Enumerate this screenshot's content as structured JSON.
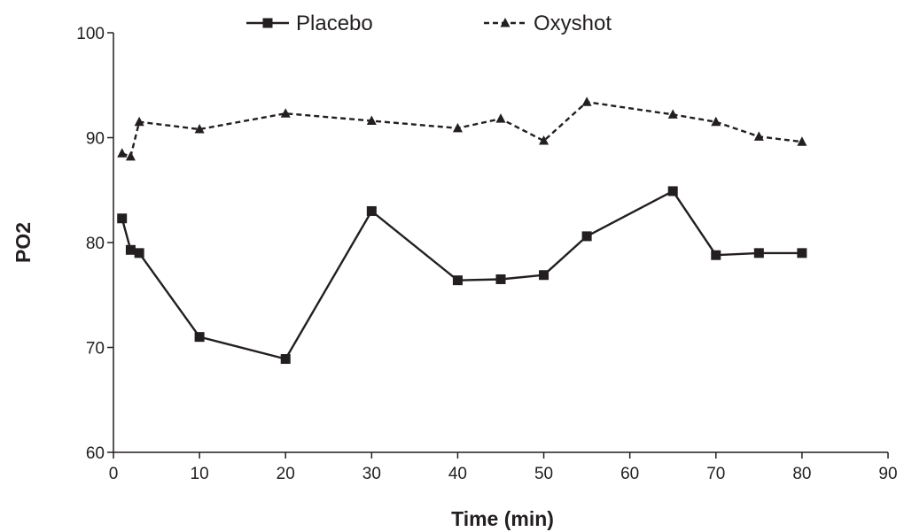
{
  "chart_data": {
    "type": "line",
    "title": "",
    "xlabel": "Time (min)",
    "ylabel": "PO2",
    "xlim": [
      0,
      90
    ],
    "ylim": [
      60,
      100
    ],
    "xticks": [
      0,
      10,
      20,
      30,
      40,
      50,
      60,
      70,
      80,
      90
    ],
    "yticks": [
      60,
      70,
      80,
      90,
      100
    ],
    "grid": false,
    "legend_position": "top",
    "series": [
      {
        "name": "Placebo",
        "line_style": "solid",
        "marker": "square",
        "color": "#231f20",
        "x": [
          1,
          2,
          3,
          10,
          20,
          30,
          40,
          45,
          50,
          55,
          65,
          70,
          75,
          80
        ],
        "y": [
          82.3,
          79.3,
          79.0,
          71.0,
          68.9,
          83.0,
          76.4,
          76.5,
          76.9,
          80.6,
          84.9,
          78.8,
          79.0,
          79.0
        ]
      },
      {
        "name": "Oxyshot",
        "line_style": "dashed",
        "marker": "triangle",
        "color": "#231f20",
        "x": [
          1,
          2,
          3,
          10,
          20,
          30,
          40,
          45,
          50,
          55,
          65,
          70,
          75,
          80
        ],
        "y": [
          88.5,
          88.2,
          91.5,
          90.8,
          92.3,
          91.6,
          90.9,
          91.8,
          89.7,
          93.4,
          92.2,
          91.5,
          90.1,
          89.6
        ]
      }
    ]
  }
}
